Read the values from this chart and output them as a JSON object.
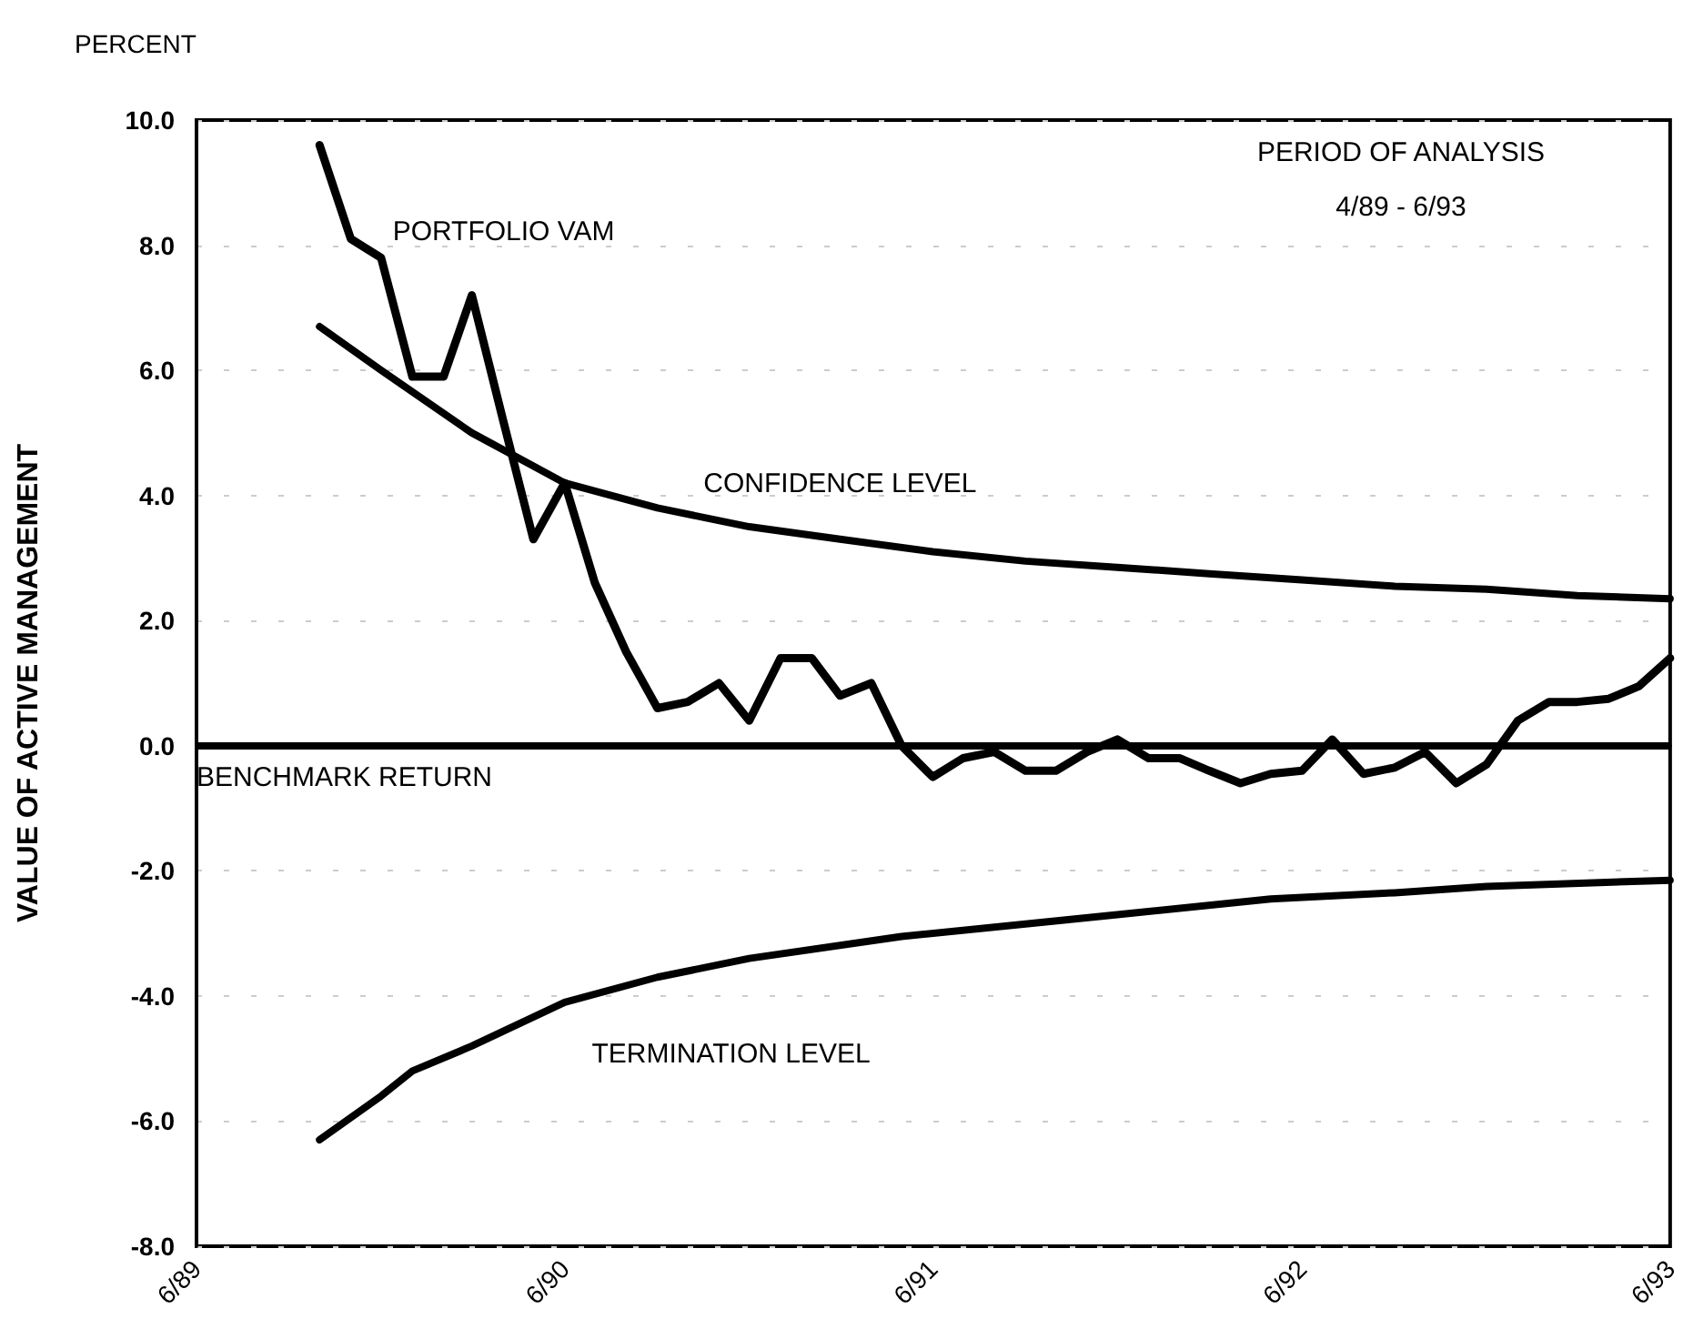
{
  "chart_data": {
    "type": "line",
    "title": "PERCENT",
    "ylabel": "VALUE OF ACTIVE MANAGEMENT",
    "annotations": [
      "PERIOD OF ANALYSIS",
      "4/89 - 6/93"
    ],
    "xlim": [
      "1989-06",
      "1993-06"
    ],
    "xticks": [
      {
        "value": "1989-06",
        "label": "6/89"
      },
      {
        "value": "1990-06",
        "label": "6/90"
      },
      {
        "value": "1991-06",
        "label": "6/91"
      },
      {
        "value": "1992-06",
        "label": "6/92"
      },
      {
        "value": "1993-06",
        "label": "6/93"
      }
    ],
    "ylim": [
      -8,
      10
    ],
    "yticks": [
      {
        "value": -8,
        "label": "-8.0"
      },
      {
        "value": -6,
        "label": "-6.0"
      },
      {
        "value": -4,
        "label": "-4.0"
      },
      {
        "value": -2,
        "label": "-2.0"
      },
      {
        "value": 0,
        "label": "0.0"
      },
      {
        "value": 2,
        "label": "2.0"
      },
      {
        "value": 4,
        "label": "4.0"
      },
      {
        "value": 6,
        "label": "6.0"
      },
      {
        "value": 8,
        "label": "8.0"
      },
      {
        "value": 10,
        "label": "10.0"
      }
    ],
    "grid": "y",
    "legend": false,
    "marker": "none",
    "line_style": "solid",
    "ref_lines": [
      {
        "axis": "y",
        "value": 0,
        "label": "BENCHMARK RETURN",
        "color": "#000000"
      }
    ],
    "series": [
      {
        "name": "PORTFOLIO VAM",
        "color": "#000000",
        "x": [
          "1989-10",
          "1989-11",
          "1989-12",
          "1990-01",
          "1990-02",
          "1990-03",
          "1990-04",
          "1990-05",
          "1990-06",
          "1990-07",
          "1990-08",
          "1990-09",
          "1990-10",
          "1990-11",
          "1990-12",
          "1991-01",
          "1991-02",
          "1991-03",
          "1991-04",
          "1991-05",
          "1991-06",
          "1991-07",
          "1991-08",
          "1991-09",
          "1991-10",
          "1991-11",
          "1991-12",
          "1992-01",
          "1992-02",
          "1992-03",
          "1992-04",
          "1992-05",
          "1992-06",
          "1992-07",
          "1992-08",
          "1992-09",
          "1992-10",
          "1992-11",
          "1992-12",
          "1993-01",
          "1993-02",
          "1993-03",
          "1993-04",
          "1993-05",
          "1993-06"
        ],
        "values": [
          9.6,
          8.1,
          7.8,
          5.9,
          5.9,
          7.2,
          5.2,
          3.3,
          4.2,
          2.6,
          1.5,
          0.6,
          0.7,
          1.0,
          0.4,
          1.4,
          1.4,
          0.8,
          1.0,
          0.0,
          -0.5,
          -0.2,
          -0.1,
          -0.4,
          -0.4,
          -0.1,
          0.1,
          -0.2,
          -0.2,
          -0.4,
          -0.6,
          -0.45,
          -0.4,
          0.1,
          -0.45,
          -0.35,
          -0.1,
          -0.6,
          -0.3,
          0.4,
          0.7,
          0.7,
          0.75,
          0.95,
          1.4
        ]
      },
      {
        "name": "CONFIDENCE LEVEL",
        "color": "#000000",
        "x": [
          "1989-10",
          "1989-12",
          "1990-03",
          "1990-06",
          "1990-09",
          "1990-12",
          "1991-03",
          "1991-06",
          "1991-09",
          "1991-12",
          "1992-03",
          "1992-06",
          "1992-09",
          "1992-12",
          "1993-03",
          "1993-06"
        ],
        "values": [
          6.7,
          6.0,
          5.0,
          4.2,
          3.8,
          3.5,
          3.3,
          3.1,
          2.95,
          2.85,
          2.75,
          2.65,
          2.55,
          2.5,
          2.4,
          2.35
        ]
      },
      {
        "name": "TERMINATION LEVEL",
        "color": "#000000",
        "x": [
          "1989-10",
          "1989-12",
          "1990-01",
          "1990-03",
          "1990-06",
          "1990-09",
          "1990-12",
          "1991-05",
          "1991-09",
          "1991-12",
          "1992-05",
          "1992-09",
          "1992-12",
          "1993-06"
        ],
        "values": [
          -6.3,
          -5.6,
          -5.2,
          -4.8,
          -4.1,
          -3.7,
          -3.4,
          -3.05,
          -2.85,
          -2.7,
          -2.45,
          -2.35,
          -2.25,
          -2.15
        ]
      }
    ]
  }
}
